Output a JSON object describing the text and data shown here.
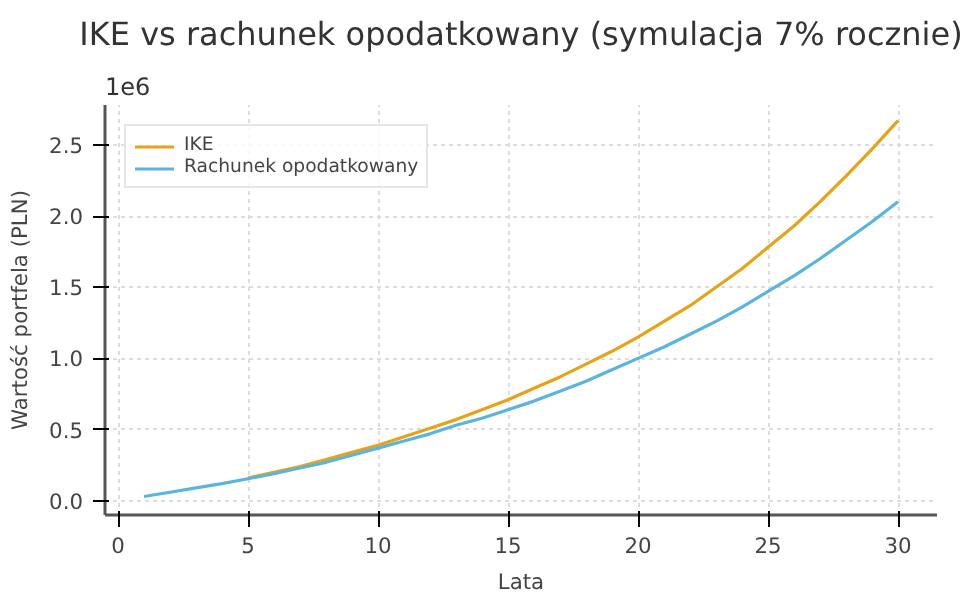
{
  "chart_data": {
    "type": "line",
    "title": "IKE vs rachunek opodatkowany (symulacja 7% rocznie)",
    "xlabel": "Lata",
    "ylabel": "Wartość portfela (PLN)",
    "annotations": [
      "1e6"
    ],
    "x": [
      1,
      2,
      3,
      4,
      5,
      6,
      7,
      8,
      9,
      10,
      11,
      12,
      13,
      14,
      15,
      16,
      17,
      18,
      19,
      20,
      21,
      22,
      23,
      24,
      25,
      26,
      27,
      28,
      29,
      30
    ],
    "series": [
      {
        "name": "IKE",
        "color": "#e6a317",
        "values": [
          null,
          null,
          null,
          null,
          0.16,
          0.2,
          0.24,
          0.29,
          0.34,
          0.39,
          0.45,
          0.51,
          0.57,
          0.64,
          0.71,
          0.79,
          0.87,
          0.96,
          1.05,
          1.15,
          1.26,
          1.37,
          1.5,
          1.63,
          1.78,
          1.93,
          2.1,
          2.28,
          2.47,
          2.67
        ]
      },
      {
        "name": "Rachunek opodatkowany",
        "color": "#5ab4e0",
        "values": [
          0.03,
          0.06,
          0.09,
          0.12,
          0.155,
          0.19,
          0.23,
          0.27,
          0.32,
          0.37,
          0.42,
          0.47,
          0.53,
          0.58,
          0.64,
          0.7,
          0.77,
          0.84,
          0.92,
          1.0,
          1.08,
          1.17,
          1.26,
          1.36,
          1.47,
          1.58,
          1.7,
          1.83,
          1.96,
          2.1
        ]
      }
    ],
    "xlim": [
      -0.5,
      31.5
    ],
    "ylim": [
      -0.1,
      2.78
    ],
    "xticks": [
      0,
      5,
      10,
      15,
      20,
      25,
      30
    ],
    "yticks": [
      {
        "value": 0,
        "label": "0.0"
      },
      {
        "value": 0.5,
        "label": "0.5"
      },
      {
        "value": 1,
        "label": "1.0"
      },
      {
        "value": 1.5,
        "label": "1.5"
      },
      {
        "value": 2,
        "label": "2.0"
      },
      {
        "value": 2.5,
        "label": "2.5"
      }
    ],
    "grid": true,
    "legend": "top left",
    "line_style": "solid"
  }
}
